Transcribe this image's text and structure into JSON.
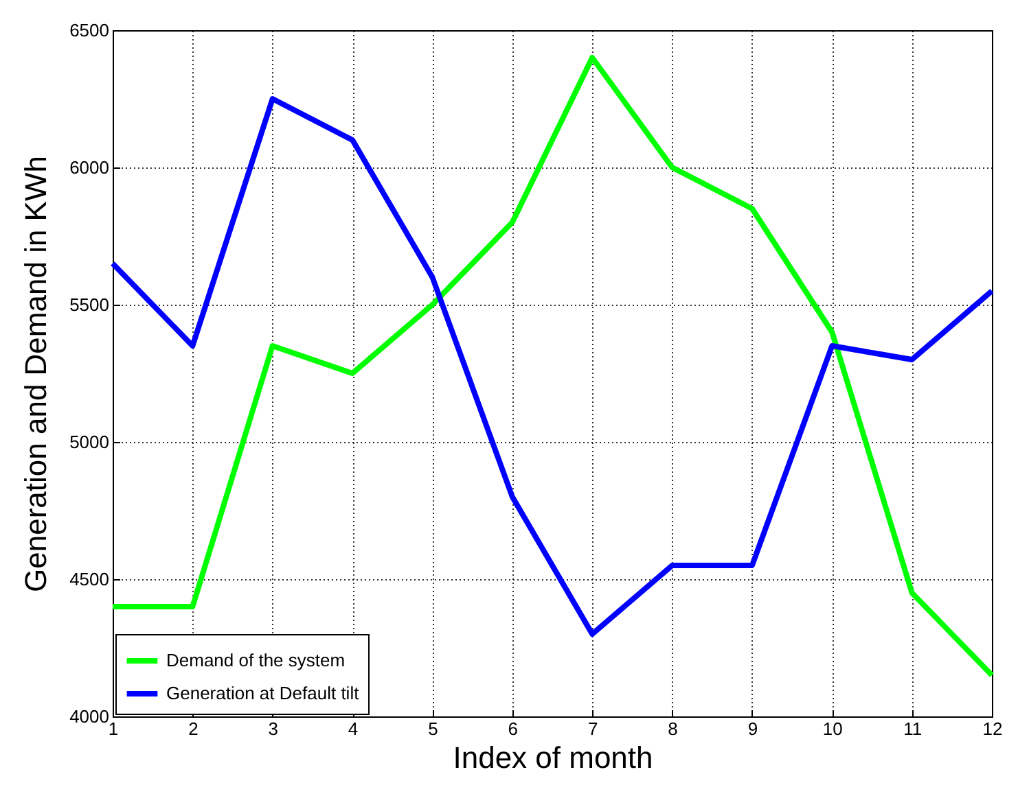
{
  "chart_data": {
    "type": "line",
    "xlabel": "Index of month",
    "ylabel": "Generation and Demand in KWh",
    "x": [
      1,
      2,
      3,
      4,
      5,
      6,
      7,
      8,
      9,
      10,
      11,
      12
    ],
    "series": [
      {
        "name": "Demand of the system",
        "color": "#00ff00",
        "values": [
          4400,
          4400,
          5350,
          5250,
          5500,
          5800,
          6400,
          6000,
          5850,
          5400,
          4450,
          4150
        ]
      },
      {
        "name": "Generation at Default tilt",
        "color": "#0000ff",
        "values": [
          5650,
          5350,
          6250,
          6100,
          5600,
          4800,
          4300,
          4550,
          4550,
          5350,
          5300,
          5550
        ]
      }
    ],
    "xlim": [
      1,
      12
    ],
    "xticks": [
      1,
      2,
      3,
      4,
      5,
      6,
      7,
      8,
      9,
      10,
      11,
      12
    ],
    "ylim": [
      4000,
      6500
    ],
    "yticks": [
      4000,
      4500,
      5000,
      5500,
      6000,
      6500
    ],
    "grid": true,
    "legend": "bottom left",
    "marker": "none",
    "line_style": "solid"
  }
}
